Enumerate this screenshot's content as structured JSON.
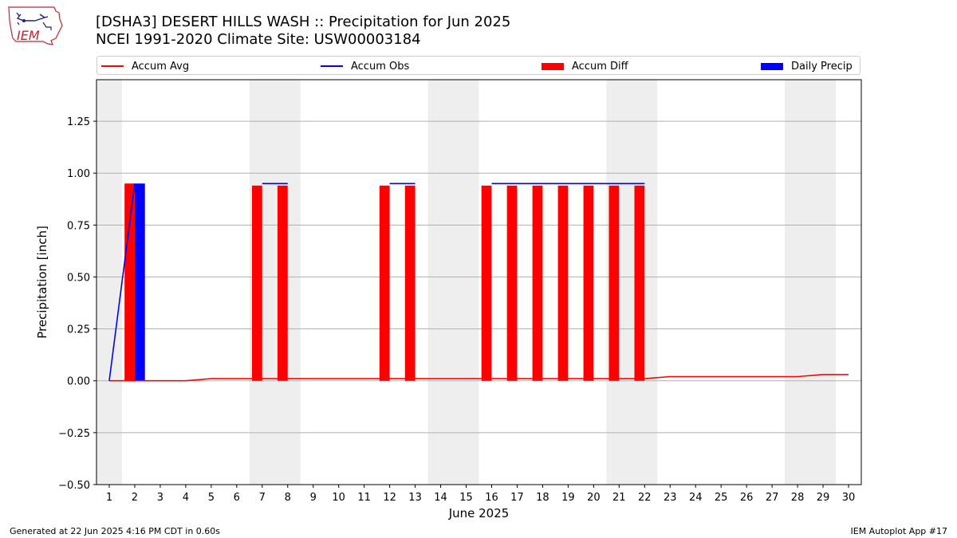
{
  "header": {
    "title_line1": "[DSHA3] DESERT HILLS WASH :: Precipitation for Jun 2025",
    "title_line2": "NCEI 1991-2020 Climate Site: USW00003184"
  },
  "logo": {
    "text": "IEM"
  },
  "footer": {
    "left": "Generated at 22 Jun 2025 4:16 PM CDT in 0.60s",
    "right": "IEM Autoplot App #17"
  },
  "legend": {
    "placement": "top",
    "items": [
      {
        "label": "Accum Avg",
        "kind": "line",
        "color": "#ff0000"
      },
      {
        "label": "Accum Obs",
        "kind": "line",
        "color": "#0000ff"
      },
      {
        "label": "Accum Diff",
        "kind": "box",
        "color": "#ff0000"
      },
      {
        "label": "Daily Precip",
        "kind": "box",
        "color": "#0000ff"
      }
    ]
  },
  "chart_data": {
    "type": "bar",
    "xlabel": "June 2025",
    "ylabel": "Precipitation [inch]",
    "xlim": [
      0.5,
      30.5
    ],
    "ylim": [
      -0.5,
      1.45
    ],
    "yticks": [
      -0.5,
      -0.25,
      0.0,
      0.25,
      0.5,
      0.75,
      1.0,
      1.25
    ],
    "ytick_labels": [
      "−0.50",
      "−0.25",
      "0.00",
      "0.25",
      "0.50",
      "0.75",
      "1.00",
      "1.25"
    ],
    "grid": "y",
    "x": [
      1,
      2,
      3,
      4,
      5,
      6,
      7,
      8,
      9,
      10,
      11,
      12,
      13,
      14,
      15,
      16,
      17,
      18,
      19,
      20,
      21,
      22,
      23,
      24,
      25,
      26,
      27,
      28,
      29,
      30
    ],
    "weekend_days": [
      1,
      7,
      8,
      14,
      15,
      21,
      22,
      28,
      29
    ],
    "series": [
      {
        "name": "Accum Avg",
        "kind": "line",
        "color": "#ff0000",
        "values": [
          0,
          0,
          0,
          0,
          0.01,
          0.01,
          0.01,
          0.01,
          0.01,
          0.01,
          0.01,
          0.01,
          0.01,
          0.01,
          0.01,
          0.01,
          0.01,
          0.01,
          0.01,
          0.01,
          0.01,
          0.01,
          0.02,
          0.02,
          0.02,
          0.02,
          0.02,
          0.02,
          0.03,
          0.03
        ]
      },
      {
        "name": "Accum Obs",
        "kind": "line",
        "color": "#0000ff",
        "values": [
          0,
          0.95,
          null,
          null,
          null,
          null,
          0.95,
          0.95,
          null,
          null,
          null,
          0.95,
          0.95,
          null,
          null,
          0.95,
          0.95,
          0.95,
          0.95,
          0.95,
          0.95,
          0.95,
          null,
          null,
          null,
          null,
          null,
          null,
          null,
          null
        ]
      },
      {
        "name": "Accum Diff",
        "kind": "bar",
        "color": "#ff0000",
        "values": [
          null,
          0.95,
          null,
          null,
          null,
          null,
          0.94,
          0.94,
          null,
          null,
          null,
          0.94,
          0.94,
          null,
          null,
          0.94,
          0.94,
          0.94,
          0.94,
          0.94,
          0.94,
          0.94,
          null,
          null,
          null,
          null,
          null,
          null,
          null,
          null
        ]
      },
      {
        "name": "Daily Precip",
        "kind": "bar",
        "color": "#0000ff",
        "values": [
          0,
          0.95,
          0,
          0,
          0,
          0,
          0,
          0,
          0,
          0,
          0,
          0,
          0,
          0,
          0,
          0,
          0,
          0,
          0,
          0,
          0,
          0,
          null,
          null,
          null,
          null,
          null,
          null,
          null,
          null
        ]
      }
    ]
  }
}
